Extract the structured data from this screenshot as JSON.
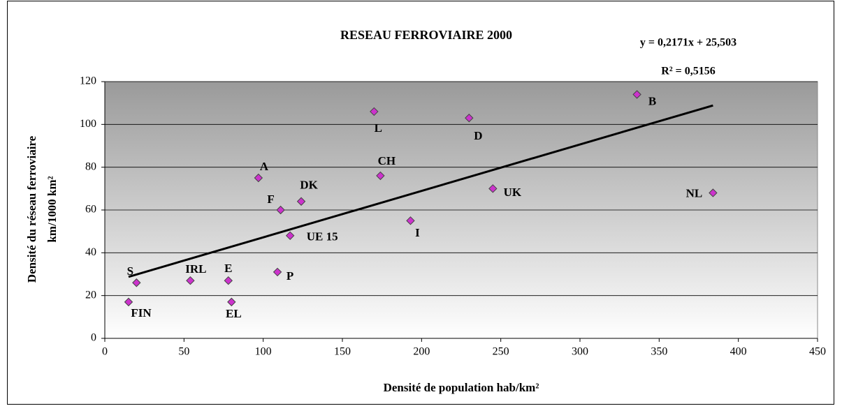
{
  "chart_data": {
    "type": "scatter",
    "title": "RESEAU FERROVIAIRE 2000",
    "x_label": "Densité de population hab/km²",
    "y_label": [
      "Densité du réseau ferroviaire",
      "km/1000 km²"
    ],
    "point_labels": [
      "S",
      "FIN",
      "IRL",
      "E",
      "EL",
      "A",
      "F",
      "UE 15",
      "P",
      "DK",
      "L",
      "CH",
      "I",
      "D",
      "UK",
      "B",
      "NL"
    ],
    "x": [
      20,
      15,
      54,
      78,
      80,
      97,
      111,
      117,
      109,
      124,
      170,
      174,
      193,
      230,
      245,
      336,
      384
    ],
    "values": [
      26,
      17,
      27,
      27,
      17,
      75,
      60,
      48,
      31,
      64,
      106,
      76,
      55,
      103,
      70,
      114,
      68
    ],
    "color": "#cc33cc",
    "xlim": [
      0,
      450
    ],
    "ylim": [
      0,
      120
    ],
    "xticks": [
      0,
      50,
      100,
      150,
      200,
      250,
      300,
      350,
      400,
      450
    ],
    "yticks": [
      0,
      20,
      40,
      60,
      80,
      100,
      120
    ],
    "grid": true,
    "trendline": {
      "slope": 0.2171,
      "intercept": 25.503,
      "label": "y = 0,2171x + 25,503",
      "r_squared": 0.5156,
      "r_squared_label": "R² = 0,5156"
    }
  }
}
